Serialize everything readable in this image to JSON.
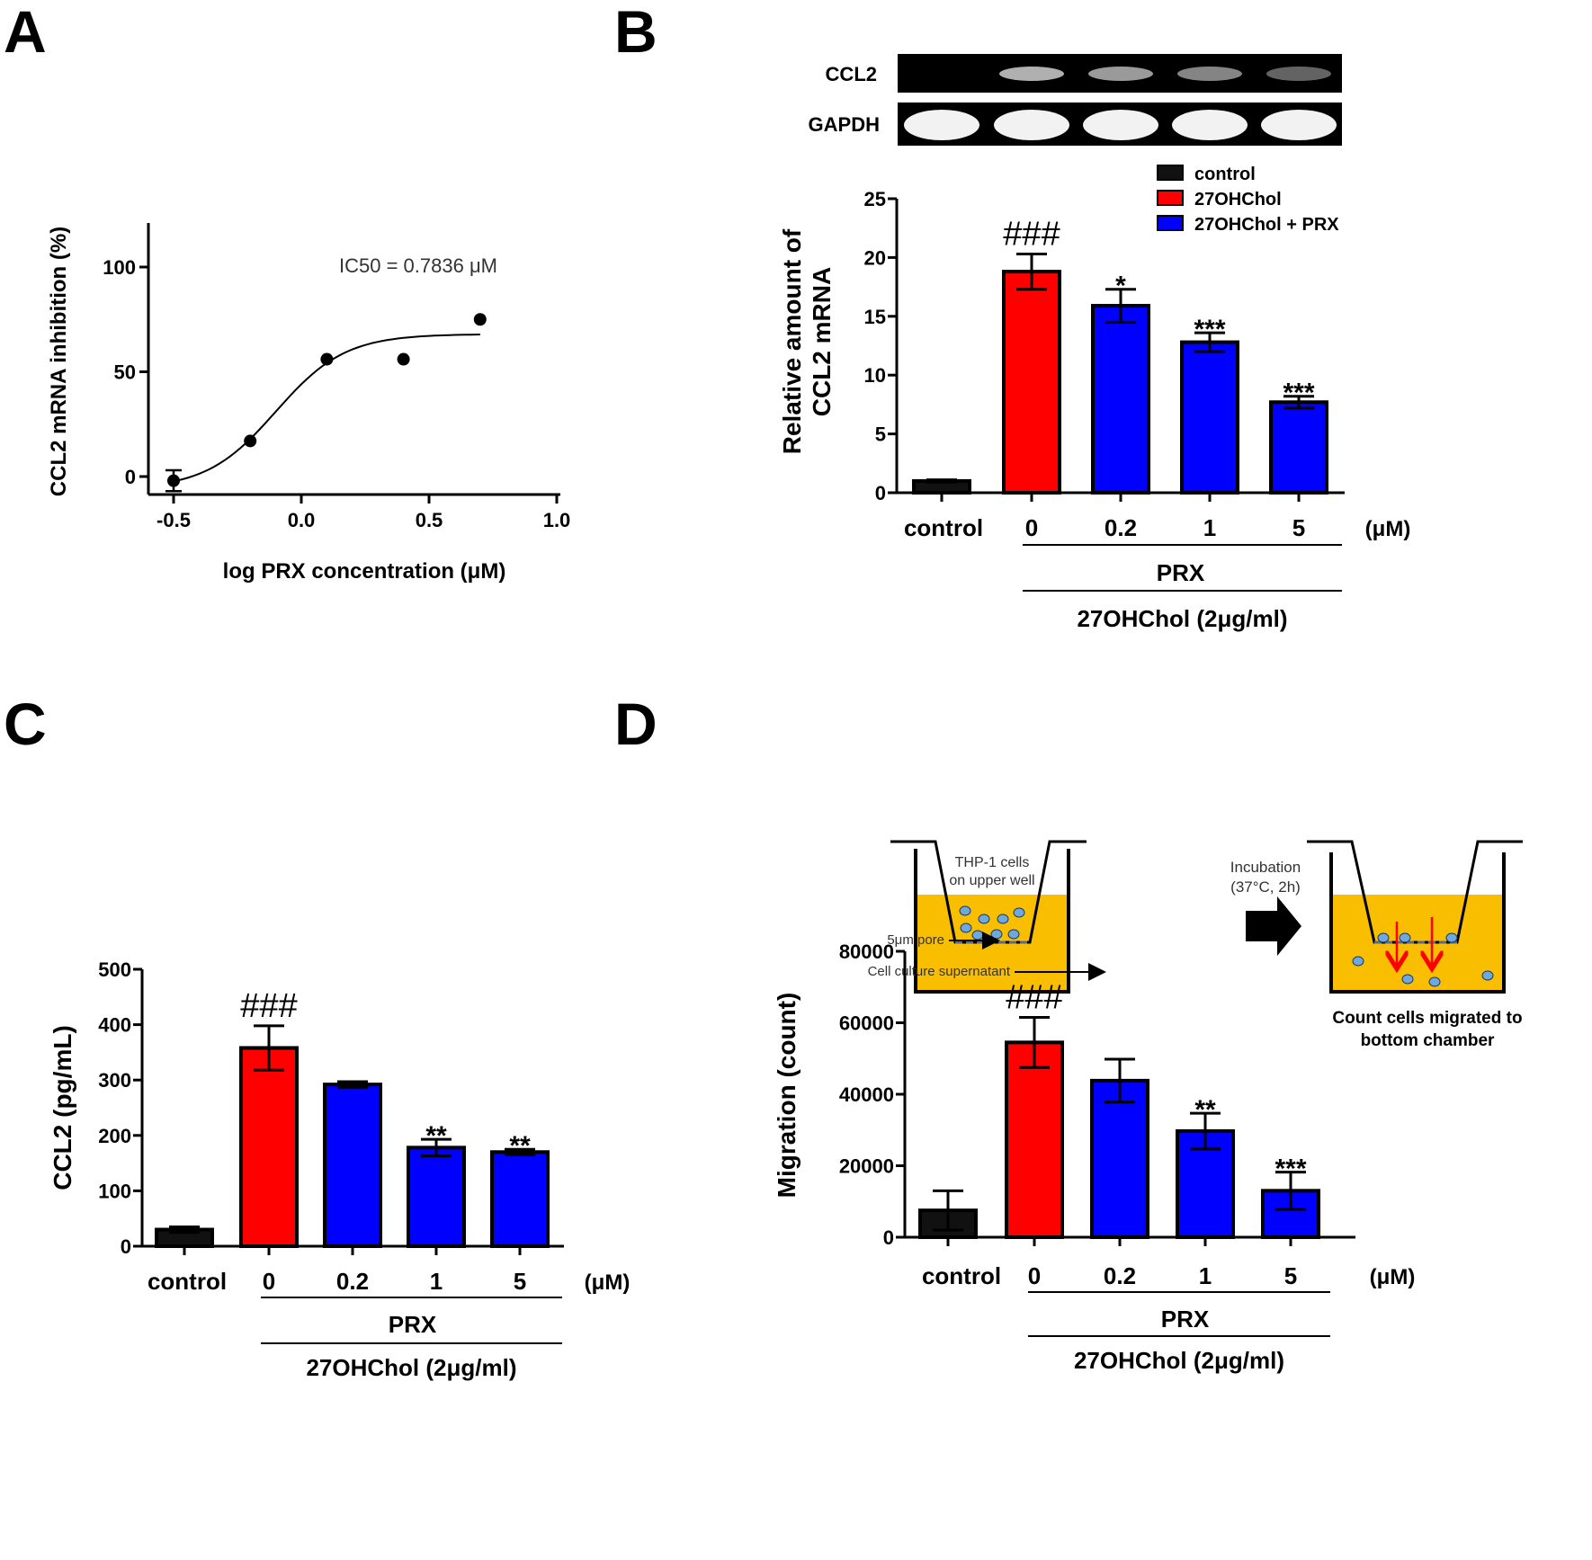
{
  "panels": {
    "a": "A",
    "b": "B",
    "c": "C",
    "d": "D"
  },
  "colors": {
    "control": "#111111",
    "oxy": "#ff0000",
    "prx": "#0000ff",
    "well_fill": "#f9be00",
    "cell": "#6fa8dc",
    "arrow_red": "#ff0000"
  },
  "gel": {
    "ccl2_label": "CCL2",
    "gapdh_label": "GAPDH"
  },
  "legend": {
    "items": [
      "control",
      "27OHChol",
      "27OHChol + PRX"
    ]
  },
  "unit": "(μM)",
  "prx_label": "PRX",
  "oxy_label": "27OHChol (2μg/ml)",
  "diagram": {
    "thp1_label": "THP-1 cells\non upper well",
    "incubation_label": "Incubation\n(37°C, 2h)",
    "pore_label": "5μm pore",
    "supernatant_label": "Cell culture supernatant",
    "count_label": "Count cells  migrated to\nbottom chamber"
  },
  "chart_data": [
    {
      "panel": "A",
      "type": "scatter",
      "title": "",
      "xlabel": "log PRX concentration (μM)",
      "ylabel": "CCL2 mRNA inhibition (%)",
      "xlim": [
        -0.6,
        1.0
      ],
      "ylim": [
        -7,
        120
      ],
      "xticks": [
        -0.5,
        0.0,
        0.5,
        1.0
      ],
      "xtick_labels": [
        "-0.5",
        "0.0",
        "0.5",
        "1.0"
      ],
      "yticks": [
        0,
        50,
        100
      ],
      "ytick_labels": [
        "0",
        "50",
        "100"
      ],
      "points": [
        {
          "x": -0.5,
          "y": -2,
          "err": 5
        },
        {
          "x": -0.2,
          "y": 17
        },
        {
          "x": 0.1,
          "y": 56
        },
        {
          "x": 0.4,
          "y": 56
        },
        {
          "x": 0.7,
          "y": 75
        }
      ],
      "fit": {
        "model": "sigmoid",
        "bottom": -6,
        "top": 68,
        "log_ic50": -0.1,
        "x_range": [
          -0.5,
          0.7
        ]
      },
      "annotation": "IC50 = 0.7836 μM"
    },
    {
      "panel": "B",
      "type": "bar",
      "title": "",
      "ylabel": "Relative amount of\nCCL2 mRNA",
      "categories": [
        "control",
        "0",
        "0.2",
        "1",
        "5"
      ],
      "values": [
        1,
        18.8,
        15.9,
        12.8,
        7.7
      ],
      "errors": [
        0.1,
        1.5,
        1.4,
        0.8,
        0.5
      ],
      "significance": [
        "",
        "###",
        "*",
        "***",
        "***"
      ],
      "ylim": [
        0,
        25
      ],
      "yticks": [
        0,
        5,
        10,
        15,
        20,
        25
      ],
      "ytick_labels": [
        "0",
        "5",
        "10",
        "15",
        "20",
        "25"
      ]
    },
    {
      "panel": "C",
      "type": "bar",
      "title": "",
      "ylabel": "CCL2  (pg/mL)",
      "categories": [
        "control",
        "0",
        "0.2",
        "1",
        "5"
      ],
      "values": [
        30,
        358,
        292,
        178,
        170
      ],
      "errors": [
        5,
        40,
        5,
        15,
        5
      ],
      "significance": [
        "",
        "###",
        "",
        "**",
        "**"
      ],
      "ylim": [
        0,
        500
      ],
      "yticks": [
        0,
        100,
        200,
        300,
        400,
        500
      ],
      "ytick_labels": [
        "0",
        "100",
        "200",
        "300",
        "400",
        "500"
      ]
    },
    {
      "panel": "D",
      "type": "bar",
      "title": "",
      "ylabel": "Migration (count)",
      "categories": [
        "control",
        "0",
        "0.2",
        "1",
        "5"
      ],
      "values": [
        7500,
        54500,
        43800,
        29700,
        13000
      ],
      "errors": [
        5500,
        7000,
        6000,
        5000,
        5200
      ],
      "significance": [
        "",
        "###",
        "",
        "**",
        "***"
      ],
      "ylim": [
        0,
        80000
      ],
      "yticks": [
        0,
        20000,
        40000,
        60000,
        80000
      ],
      "ytick_labels": [
        "0",
        "20000",
        "40000",
        "60000",
        "80000"
      ]
    }
  ]
}
